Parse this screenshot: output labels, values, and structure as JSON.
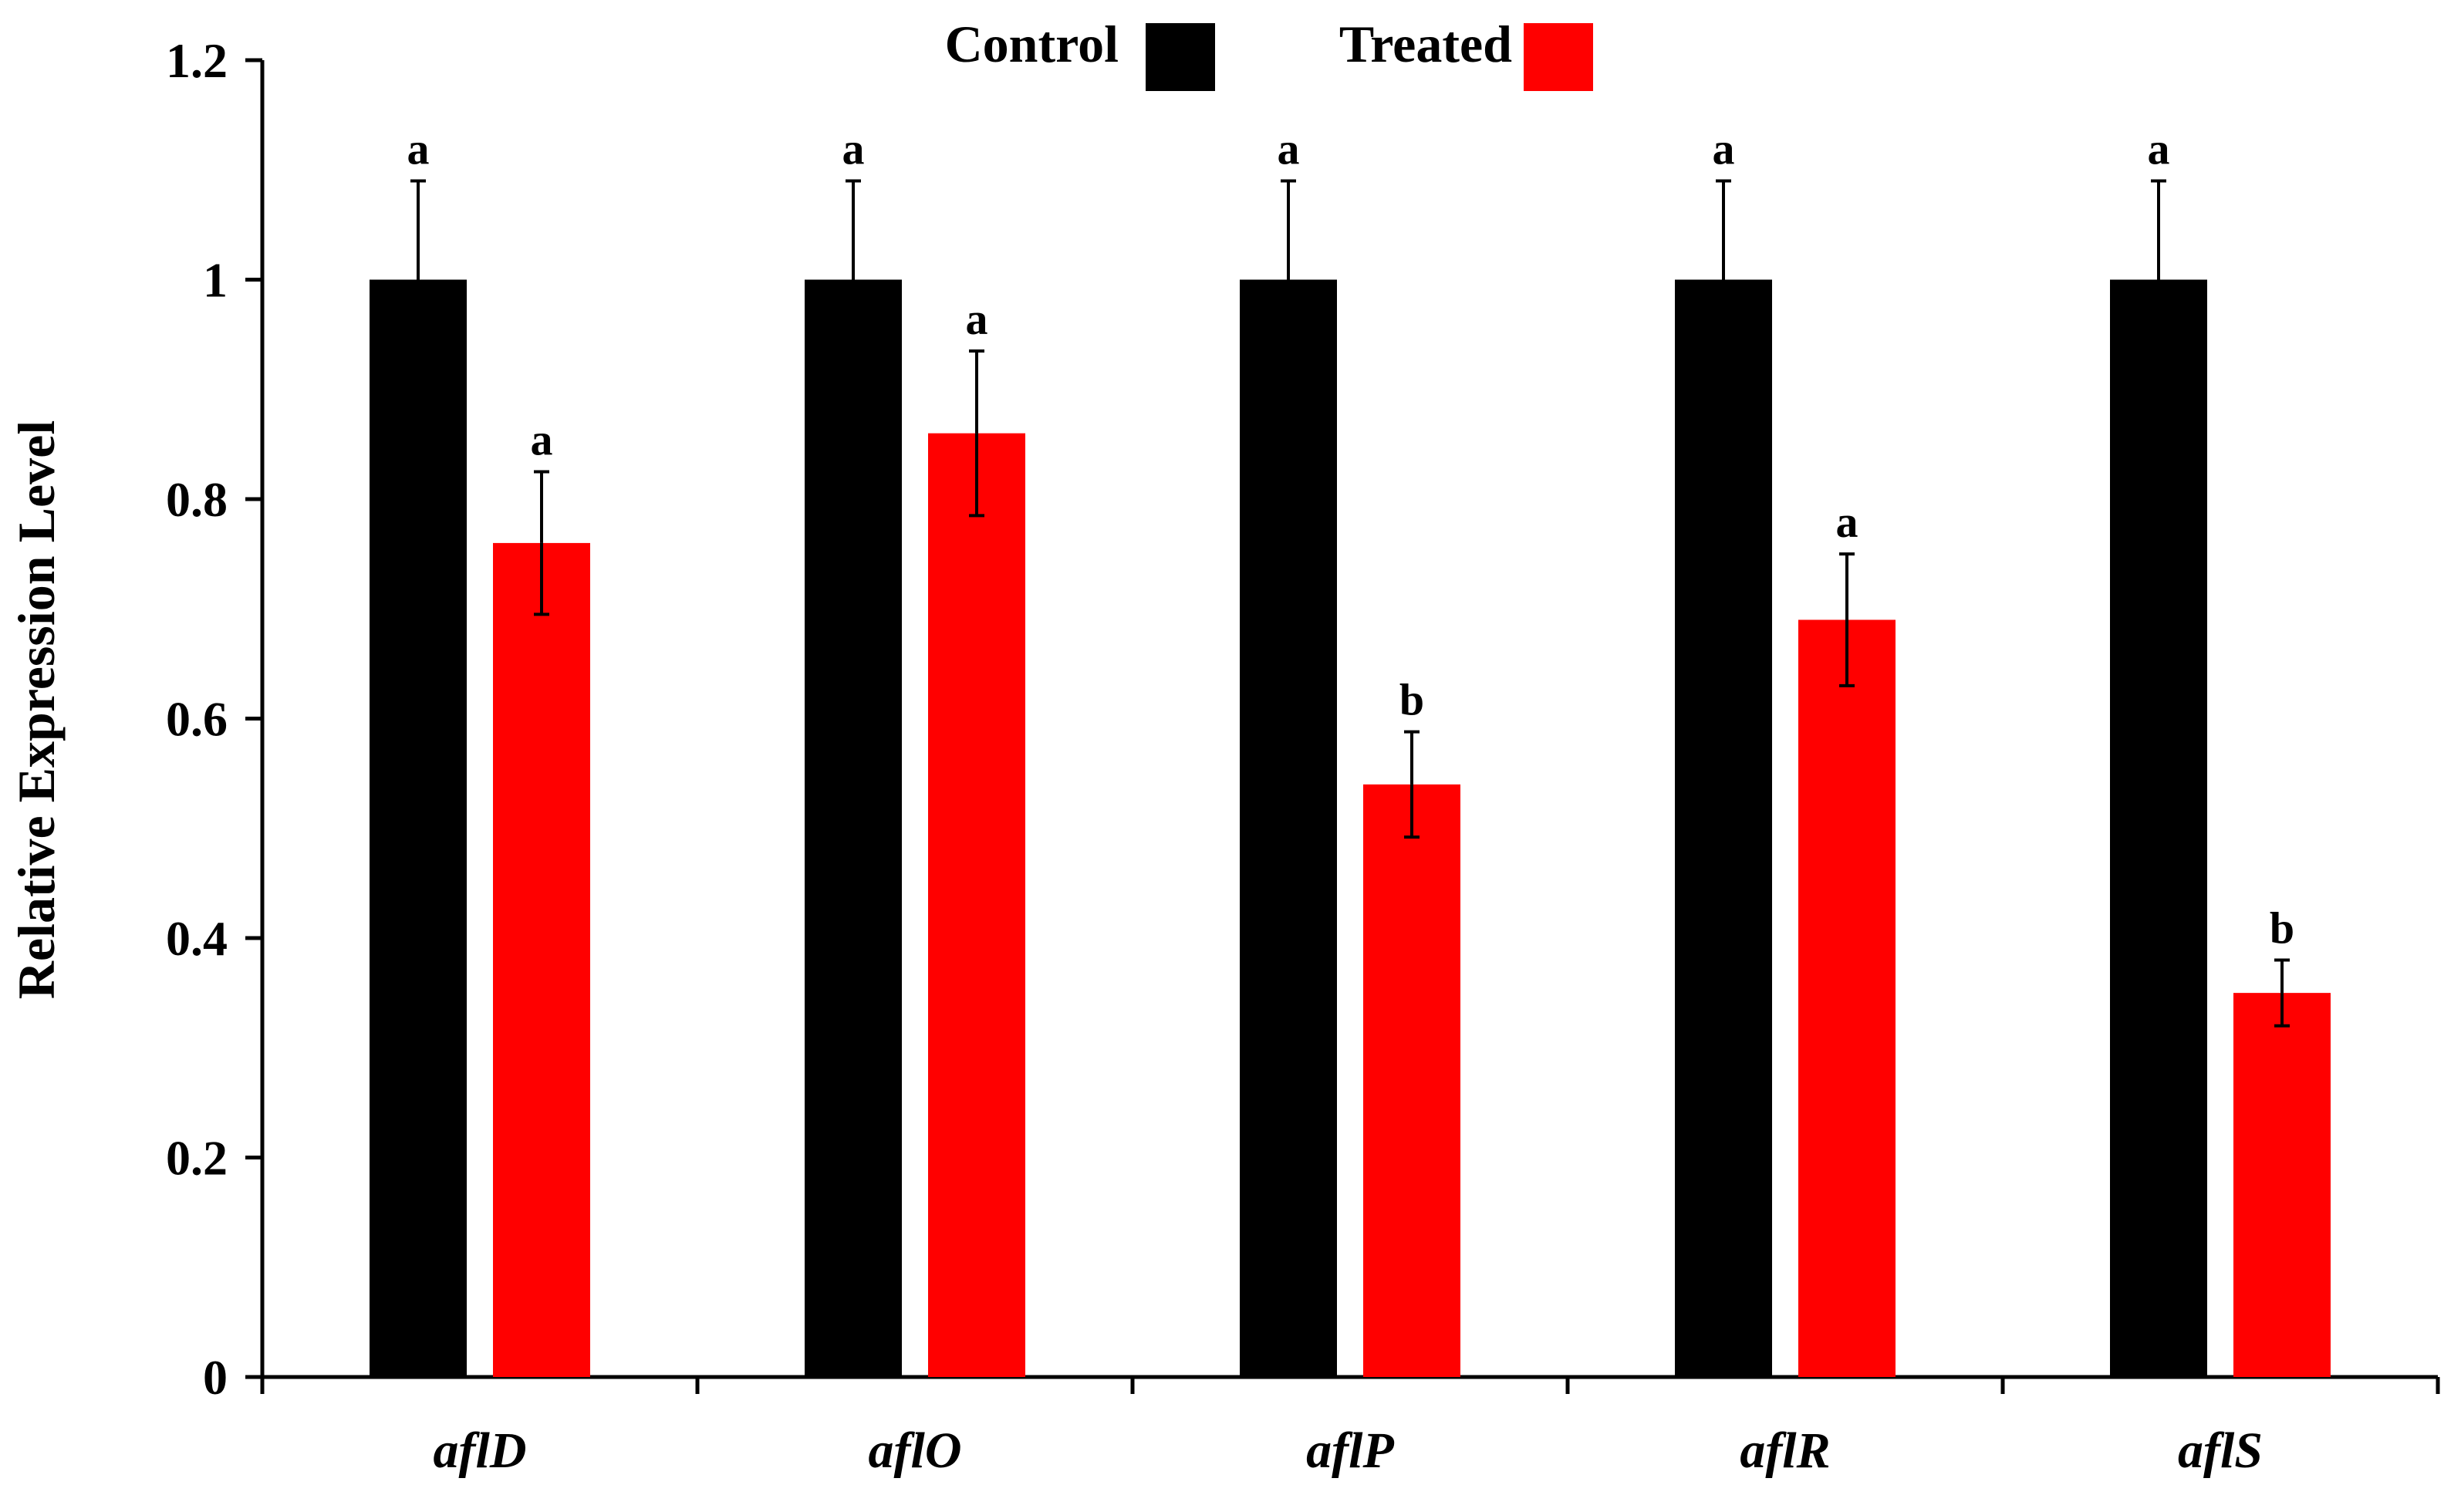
{
  "chart_data": {
    "type": "bar",
    "title": "",
    "xlabel": "",
    "ylabel": "Relative Expression Level",
    "ylim": [
      0,
      1.2
    ],
    "yticks": [
      0,
      0.2,
      0.4,
      0.6,
      0.8,
      1,
      1.2
    ],
    "ytick_labels": [
      "0",
      "0.2",
      "0.4",
      "0.6",
      "0.8",
      "1",
      "1.2"
    ],
    "categories": [
      "aflD",
      "aflO",
      "aflP",
      "aflR",
      "aflS"
    ],
    "series": [
      {
        "name": "Control",
        "color": "#000000",
        "values": [
          1.0,
          1.0,
          1.0,
          1.0,
          1.0
        ],
        "errors": [
          0.09,
          0.09,
          0.09,
          0.09,
          0.09
        ],
        "significance": [
          "a",
          "a",
          "a",
          "a",
          "a"
        ]
      },
      {
        "name": "Treated",
        "color": "#ff0000",
        "values": [
          0.76,
          0.86,
          0.54,
          0.69,
          0.35
        ],
        "errors": [
          0.065,
          0.075,
          0.048,
          0.06,
          0.03
        ],
        "significance": [
          "a",
          "a",
          "b",
          "a",
          "b"
        ]
      }
    ],
    "grid": false,
    "legend_position": "top-center"
  }
}
